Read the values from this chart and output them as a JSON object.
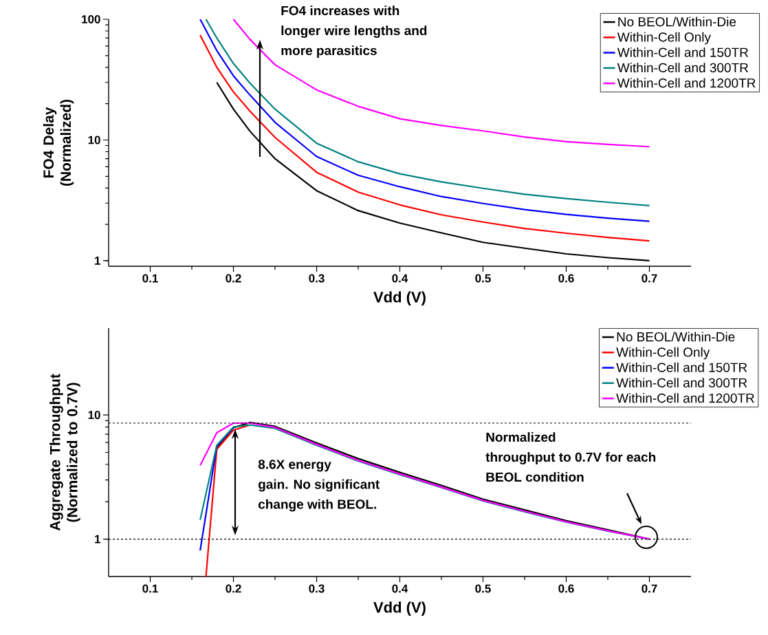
{
  "chart_data": [
    {
      "type": "line",
      "xlabel": "Vdd (V)",
      "ylabel": "FO4 Delay (Normalized)",
      "xlim": [
        0.05,
        0.75
      ],
      "ylim": [
        0.9,
        100
      ],
      "xticks": [
        0.1,
        0.2,
        0.3,
        0.4,
        0.5,
        0.6,
        0.7
      ],
      "yticks": [
        1,
        10,
        100
      ],
      "log": true,
      "legend": "top right",
      "line_style": "solid",
      "annotations": [
        "FO4 increases with longer wire lengths and more parasitics"
      ],
      "series": [
        {
          "name": "No BEOL/Within-Die",
          "color": "#000000",
          "x": [
            0.18,
            0.2,
            0.22,
            0.25,
            0.3,
            0.35,
            0.4,
            0.45,
            0.5,
            0.55,
            0.6,
            0.65,
            0.7
          ],
          "values": [
            30,
            18,
            11.8,
            7,
            3.8,
            2.6,
            2.05,
            1.7,
            1.42,
            1.27,
            1.14,
            1.06,
            1.0
          ]
        },
        {
          "name": "Within-Cell Only",
          "color": "#ff0000",
          "x": [
            0.16,
            0.18,
            0.2,
            0.22,
            0.25,
            0.3,
            0.35,
            0.4,
            0.45,
            0.5,
            0.55,
            0.6,
            0.65,
            0.7
          ],
          "values": [
            74,
            40,
            25,
            17.3,
            10.5,
            5.4,
            3.7,
            2.9,
            2.4,
            2.09,
            1.85,
            1.69,
            1.56,
            1.46
          ]
        },
        {
          "name": "Within-Cell and 150TR",
          "color": "#0000ff",
          "x": [
            0.16,
            0.18,
            0.2,
            0.22,
            0.25,
            0.3,
            0.35,
            0.4,
            0.45,
            0.5,
            0.55,
            0.6,
            0.65,
            0.7
          ],
          "values": [
            100,
            55,
            34,
            23.5,
            14,
            7.3,
            5.1,
            4.1,
            3.4,
            2.98,
            2.65,
            2.42,
            2.25,
            2.12
          ]
        },
        {
          "name": "Within-Cell and 300TR",
          "color": "#008080",
          "x": [
            0.167,
            0.18,
            0.2,
            0.22,
            0.25,
            0.3,
            0.35,
            0.4,
            0.45,
            0.5,
            0.55,
            0.6,
            0.65,
            0.7
          ],
          "values": [
            100,
            70,
            43,
            29.5,
            18,
            9.4,
            6.6,
            5.25,
            4.5,
            3.98,
            3.55,
            3.27,
            3.05,
            2.86
          ]
        },
        {
          "name": "Within-Cell and 1200TR",
          "color": "#ff00ff",
          "x": [
            0.2,
            0.22,
            0.25,
            0.3,
            0.35,
            0.4,
            0.45,
            0.5,
            0.55,
            0.6,
            0.65,
            0.7
          ],
          "values": [
            100,
            68,
            42,
            26,
            19,
            15,
            13.2,
            11.9,
            10.6,
            9.7,
            9.2,
            8.8
          ]
        }
      ]
    },
    {
      "type": "line",
      "xlabel": "Vdd (V)",
      "ylabel": "Aggregate Throughput (Normalized to 0.7V)",
      "xlim": [
        0.05,
        0.75
      ],
      "ylim": [
        0.5,
        50
      ],
      "xticks": [
        0.1,
        0.2,
        0.3,
        0.4,
        0.5,
        0.6,
        0.7
      ],
      "yticks": [
        1,
        10
      ],
      "log": true,
      "legend": "top right",
      "line_style": "solid",
      "ref_lines": [
        {
          "axis": "y",
          "value": 1,
          "line_style": "dashed",
          "color": "#000000"
        },
        {
          "axis": "y",
          "value": 8.6,
          "line_style": "dashed",
          "color": "#000000"
        }
      ],
      "annotations": [
        "8.6X energy gain. No significant change with BEOL.",
        "Normalized throughput to 0.7V for each BEOL condition"
      ],
      "series": [
        {
          "name": "No BEOL/Within-Die",
          "color": "#000000",
          "x": [
            0.18,
            0.2,
            0.22,
            0.25,
            0.3,
            0.35,
            0.4,
            0.45,
            0.5,
            0.55,
            0.6,
            0.65,
            0.7
          ],
          "values": [
            5.4,
            7.9,
            8.7,
            8.1,
            5.95,
            4.45,
            3.45,
            2.71,
            2.1,
            1.72,
            1.41,
            1.19,
            1.0
          ]
        },
        {
          "name": "Within-Cell Only",
          "color": "#ff0000",
          "x": [
            0.167,
            0.18,
            0.2,
            0.22
          ],
          "values": [
            0.5,
            5.3,
            7.55,
            8.3
          ]
        },
        {
          "name": "Within-Cell and 150TR",
          "color": "#0000ff",
          "x": [
            0.16,
            0.18,
            0.2
          ],
          "values": [
            0.81,
            5.6,
            7.9
          ]
        },
        {
          "name": "Within-Cell and 300TR",
          "color": "#008080",
          "x": [
            0.16,
            0.18,
            0.2,
            0.22,
            0.25,
            0.3,
            0.35,
            0.4,
            0.45,
            0.5,
            0.55,
            0.6,
            0.65,
            0.7
          ],
          "values": [
            1.43,
            5.7,
            8.0,
            8.3,
            7.8,
            5.7,
            4.25,
            3.3,
            2.6,
            2.03,
            1.66,
            1.37,
            1.16,
            1.0
          ]
        },
        {
          "name": "Within-Cell and 1200TR",
          "color": "#ff00ff",
          "x": [
            0.16,
            0.18,
            0.2,
            0.22,
            0.25,
            0.3,
            0.35,
            0.4,
            0.45,
            0.5,
            0.55,
            0.6,
            0.65,
            0.7
          ],
          "values": [
            3.93,
            7.2,
            8.6,
            8.6,
            7.95,
            5.8,
            4.3,
            3.35,
            2.63,
            2.05,
            1.68,
            1.38,
            1.17,
            1.0
          ]
        }
      ]
    }
  ]
}
